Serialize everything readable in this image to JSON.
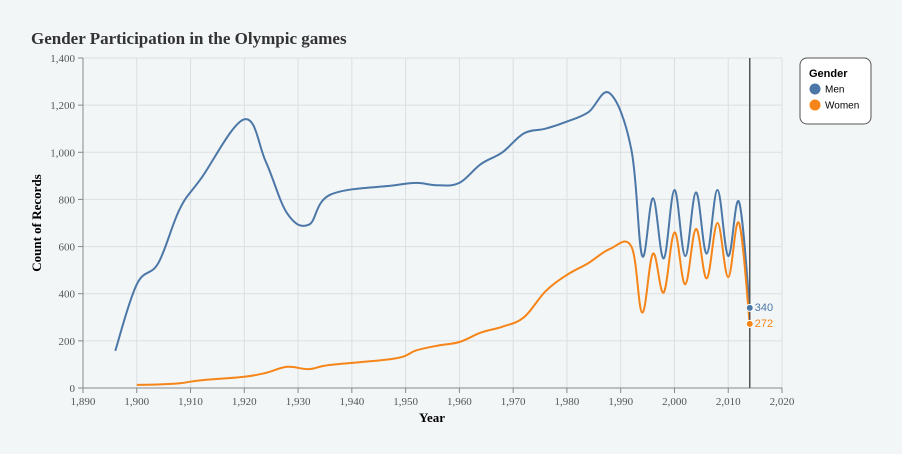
{
  "chart_data": {
    "type": "line",
    "title": "Gender Participation in the Olympic games",
    "xlabel": "Year",
    "ylabel": "Count of Records",
    "xlim": [
      1890,
      2020
    ],
    "ylim": [
      0,
      1400
    ],
    "x_ticks": [
      1890,
      1900,
      1910,
      1920,
      1930,
      1940,
      1950,
      1960,
      1970,
      1980,
      1990,
      2000,
      2010,
      2020
    ],
    "x_tick_labels": [
      "1,890",
      "1,900",
      "1,910",
      "1,920",
      "1,930",
      "1,940",
      "1,950",
      "1,960",
      "1,970",
      "1,980",
      "1,990",
      "2,000",
      "2,010",
      "2,020"
    ],
    "y_ticks": [
      0,
      200,
      400,
      600,
      800,
      1000,
      1200,
      1400
    ],
    "y_tick_labels": [
      "0",
      "200",
      "400",
      "600",
      "800",
      "1,000",
      "1,200",
      "1,400"
    ],
    "grid": true,
    "legend": {
      "title": "Gender",
      "position": "top-right"
    },
    "rule_x": 2014,
    "series": [
      {
        "name": "Men",
        "color": "#4c78a8",
        "end_label": "340",
        "x": [
          1896,
          1900,
          1904,
          1908,
          1912,
          1920,
          1924,
          1928,
          1932,
          1936,
          1948,
          1952,
          1956,
          1960,
          1964,
          1968,
          1972,
          1976,
          1980,
          1984,
          1988,
          1992,
          1994,
          1996,
          1998,
          2000,
          2002,
          2004,
          2006,
          2008,
          2010,
          2012,
          2014
        ],
        "y": [
          158,
          440,
          530,
          760,
          890,
          1140,
          960,
          740,
          693,
          820,
          860,
          870,
          860,
          870,
          950,
          1000,
          1080,
          1100,
          1130,
          1170,
          1250,
          1010,
          560,
          805,
          550,
          840,
          560,
          830,
          570,
          840,
          560,
          790,
          340
        ]
      },
      {
        "name": "Women",
        "color": "#f58518",
        "end_label": "272",
        "x": [
          1900,
          1904,
          1908,
          1912,
          1920,
          1924,
          1928,
          1932,
          1936,
          1948,
          1952,
          1956,
          1960,
          1964,
          1968,
          1972,
          1976,
          1980,
          1984,
          1988,
          1992,
          1994,
          1996,
          1998,
          2000,
          2002,
          2004,
          2006,
          2008,
          2010,
          2012,
          2014
        ],
        "y": [
          13,
          15,
          20,
          33,
          48,
          64,
          90,
          80,
          98,
          125,
          160,
          180,
          195,
          235,
          260,
          300,
          410,
          480,
          530,
          590,
          600,
          320,
          570,
          405,
          660,
          440,
          675,
          465,
          700,
          470,
          700,
          272
        ]
      }
    ]
  }
}
